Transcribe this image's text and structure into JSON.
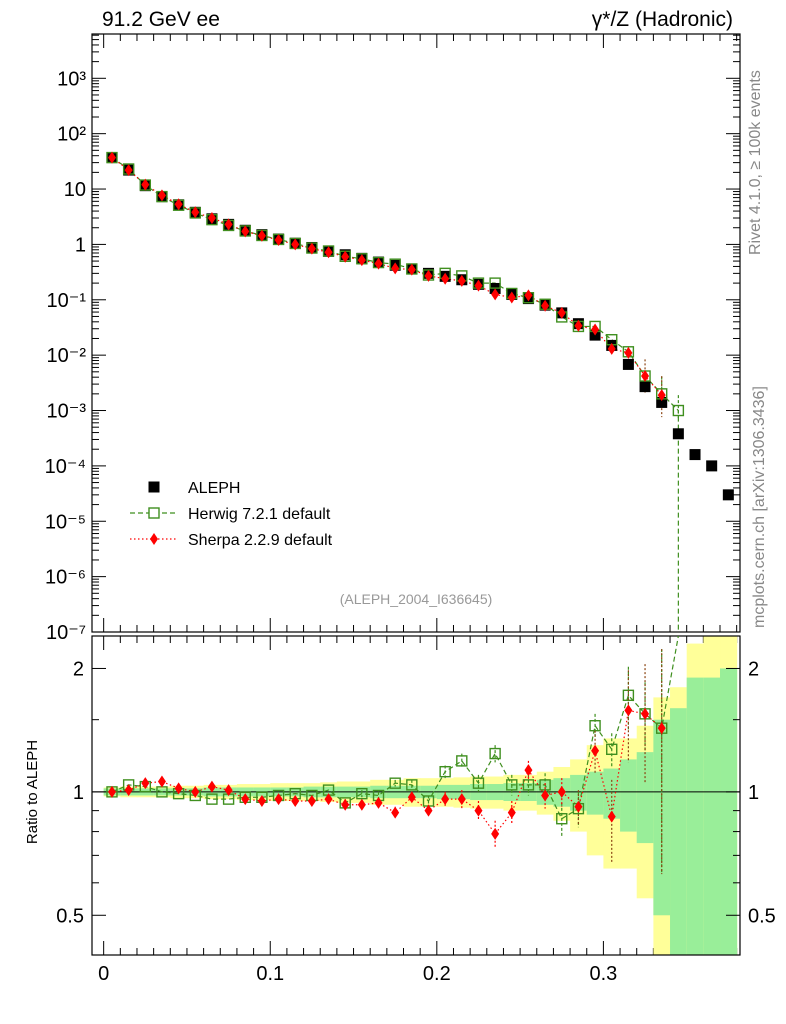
{
  "header": {
    "left": "91.2 GeV ee",
    "right": "γ*/Z (Hadronic)"
  },
  "side_labels": {
    "top": "Rivet 4.1.0, ≥ 100k events",
    "bottom": "mcplots.cern.ch [arXiv:1306.3436]"
  },
  "analysis_label": "(ALEPH_2004_I636645)",
  "colors": {
    "data": "#000000",
    "herwig": "#3f8f1f",
    "sherpa": "#ff0000",
    "band_yellow": "#ffff99",
    "band_green": "#99ee99",
    "err_brown": "#8b4513"
  },
  "chart_data": {
    "type": "scatter",
    "x": [
      0.005,
      0.015,
      0.025,
      0.035,
      0.045,
      0.055,
      0.065,
      0.075,
      0.085,
      0.095,
      0.105,
      0.115,
      0.125,
      0.135,
      0.145,
      0.155,
      0.165,
      0.175,
      0.185,
      0.195,
      0.205,
      0.215,
      0.225,
      0.235,
      0.245,
      0.255,
      0.265,
      0.275,
      0.285,
      0.295,
      0.305,
      0.315,
      0.325,
      0.335,
      0.345,
      0.355,
      0.365,
      0.375
    ],
    "xlim": [
      -0.007,
      0.382
    ],
    "main": {
      "ylim_log10": [
        -7,
        3.8
      ],
      "y_ticks": [
        "10⁻⁷",
        "10⁻⁶",
        "10⁻⁵",
        "10⁻⁴",
        "10⁻³",
        "10⁻²",
        "10⁻¹",
        "1",
        "10",
        "10²",
        "10³"
      ],
      "y_tick_values": [
        -7,
        -6,
        -5,
        -4,
        -3,
        -2,
        -1,
        0,
        1,
        2,
        3
      ],
      "series": [
        {
          "name": "ALEPH",
          "values": [
            37,
            22,
            11.5,
            7.3,
            5.2,
            3.8,
            2.9,
            2.3,
            1.8,
            1.5,
            1.25,
            1.05,
            0.88,
            0.75,
            0.65,
            0.56,
            0.48,
            0.42,
            0.36,
            0.3,
            0.265,
            0.23,
            0.19,
            0.16,
            0.125,
            0.105,
            0.08,
            0.058,
            0.037,
            0.023,
            0.015,
            0.0068,
            0.0027,
            0.0014,
            0.00038,
            0.00016,
            0.0001,
            3e-05
          ]
        },
        {
          "name": "Herwig 7.2.1 default",
          "values": [
            37,
            23,
            11.8,
            7.3,
            5.1,
            3.7,
            2.8,
            2.2,
            1.75,
            1.45,
            1.23,
            1.04,
            0.86,
            0.76,
            0.61,
            0.55,
            0.47,
            0.44,
            0.36,
            0.28,
            0.3,
            0.27,
            0.2,
            0.2,
            0.13,
            0.109,
            0.083,
            0.049,
            0.033,
            0.033,
            0.019,
            0.0115,
            0.0042,
            0.002,
            0.001
          ]
        },
        {
          "name": "Sherpa 2.2.9 default",
          "values": [
            37,
            22,
            12,
            7.7,
            5.3,
            3.8,
            3.0,
            2.3,
            1.72,
            1.43,
            1.2,
            1.0,
            0.84,
            0.72,
            0.6,
            0.52,
            0.45,
            0.37,
            0.35,
            0.27,
            0.24,
            0.22,
            0.18,
            0.125,
            0.11,
            0.12,
            0.078,
            0.058,
            0.034,
            0.029,
            0.013,
            0.011,
            0.0042,
            0.0019
          ]
        }
      ],
      "legend": [
        "ALEPH",
        "Herwig 7.2.1 default",
        "Sherpa 2.2.9 default"
      ],
      "legend_position": "bottom-left"
    },
    "ratio": {
      "ylabel": "Ratio to ALEPH",
      "ylim_log": [
        0.4,
        2.4
      ],
      "y_ticks": [
        "0.5",
        "1",
        "2"
      ],
      "y_tick_values": [
        0.5,
        1,
        2
      ],
      "x_ticks": [
        "0",
        "0.1",
        "0.2",
        "0.3"
      ],
      "x_tick_values": [
        0,
        0.1,
        0.2,
        0.3
      ],
      "herwig": [
        1.0,
        1.04,
        1.03,
        1.0,
        0.99,
        0.98,
        0.96,
        0.96,
        0.97,
        0.97,
        0.98,
        0.99,
        0.98,
        1.01,
        0.94,
        0.99,
        0.98,
        1.05,
        1.04,
        0.95,
        1.12,
        1.19,
        1.05,
        1.24,
        1.04,
        1.04,
        1.04,
        0.86,
        0.91,
        1.45,
        1.27,
        1.72,
        1.55,
        1.43
      ],
      "herwig_err": [
        0.01,
        0.01,
        0.01,
        0.01,
        0.01,
        0.01,
        0.01,
        0.01,
        0.01,
        0.01,
        0.01,
        0.01,
        0.01,
        0.01,
        0.02,
        0.02,
        0.02,
        0.02,
        0.03,
        0.03,
        0.04,
        0.05,
        0.05,
        0.06,
        0.06,
        0.06,
        0.07,
        0.08,
        0.09,
        0.1,
        0.12,
        0.3,
        0.3,
        0.8
      ],
      "sherpa": [
        1.0,
        1.01,
        1.05,
        1.06,
        1.02,
        1.0,
        1.03,
        1.01,
        0.96,
        0.95,
        0.96,
        0.95,
        0.95,
        0.96,
        0.93,
        0.93,
        0.94,
        0.89,
        0.97,
        0.9,
        0.96,
        0.96,
        0.9,
        0.79,
        0.89,
        1.13,
        0.98,
        1.0,
        0.92,
        1.26,
        0.87,
        1.58,
        1.55,
        1.43
      ],
      "sherpa_err": [
        0.01,
        0.01,
        0.01,
        0.01,
        0.01,
        0.01,
        0.01,
        0.01,
        0.01,
        0.01,
        0.01,
        0.01,
        0.01,
        0.01,
        0.02,
        0.02,
        0.02,
        0.03,
        0.03,
        0.03,
        0.04,
        0.05,
        0.05,
        0.06,
        0.06,
        0.06,
        0.07,
        0.08,
        0.09,
        0.15,
        0.2,
        0.4,
        0.5,
        0.8
      ],
      "band_green": [
        0.02,
        0.02,
        0.02,
        0.02,
        0.02,
        0.02,
        0.025,
        0.025,
        0.025,
        0.025,
        0.025,
        0.025,
        0.03,
        0.03,
        0.03,
        0.03,
        0.035,
        0.035,
        0.035,
        0.035,
        0.04,
        0.04,
        0.045,
        0.045,
        0.05,
        0.05,
        0.07,
        0.08,
        0.1,
        0.12,
        0.14,
        0.2,
        0.25,
        0.5,
        0.6,
        0.9,
        0.9,
        1.0
      ],
      "band_yellow": [
        0.025,
        0.03,
        0.03,
        0.03,
        0.035,
        0.035,
        0.04,
        0.04,
        0.045,
        0.045,
        0.05,
        0.05,
        0.05,
        0.055,
        0.06,
        0.06,
        0.07,
        0.07,
        0.08,
        0.08,
        0.08,
        0.085,
        0.09,
        0.09,
        0.1,
        0.1,
        0.12,
        0.15,
        0.2,
        0.3,
        0.35,
        0.35,
        0.45,
        0.7,
        0.8,
        1.3,
        1.4,
        1.5
      ]
    }
  }
}
